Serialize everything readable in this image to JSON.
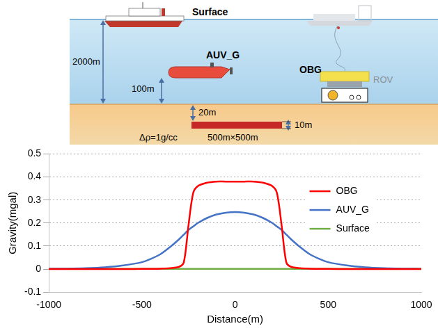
{
  "diagram": {
    "surface": "Surface",
    "vehicle": "AUV_G",
    "instrument": "OBG",
    "rov": "ROV",
    "depth": "2000m",
    "auv_height": "100m",
    "burial": "20m",
    "thickness": "10m",
    "density": "Δρ=1g/cc",
    "size": "500m×500m"
  },
  "chart_data": {
    "type": "line",
    "x_label": "Distance(m)",
    "y_label": "Gravity(mgal)",
    "x": [
      -1000,
      -900,
      -800,
      -700,
      -600,
      -500,
      -450,
      -400,
      -350,
      -300,
      -275,
      -250,
      -225,
      -200,
      -150,
      -100,
      -50,
      0,
      50,
      100,
      150,
      200,
      225,
      250,
      275,
      300,
      350,
      400,
      450,
      500,
      600,
      700,
      800,
      900,
      1000
    ],
    "series": [
      {
        "name": "OBG",
        "color": "#ff0000",
        "values": [
          0,
          0,
          0,
          0,
          0,
          0.001,
          0.001,
          0.002,
          0.004,
          0.01,
          0.03,
          0.19,
          0.33,
          0.36,
          0.375,
          0.38,
          0.38,
          0.38,
          0.38,
          0.38,
          0.375,
          0.36,
          0.33,
          0.19,
          0.03,
          0.01,
          0.004,
          0.002,
          0.001,
          0.001,
          0,
          0,
          0,
          0,
          0
        ]
      },
      {
        "name": "AUV_G",
        "color": "#4472c4",
        "values": [
          0.001,
          0.002,
          0.004,
          0.008,
          0.016,
          0.03,
          0.045,
          0.065,
          0.095,
          0.13,
          0.15,
          0.17,
          0.185,
          0.2,
          0.222,
          0.237,
          0.245,
          0.248,
          0.245,
          0.237,
          0.222,
          0.2,
          0.185,
          0.17,
          0.15,
          0.13,
          0.095,
          0.065,
          0.045,
          0.03,
          0.016,
          0.008,
          0.004,
          0.002,
          0.001
        ]
      },
      {
        "name": "Surface",
        "color": "#70ad47",
        "values": [
          0.001,
          0.001,
          0.001,
          0.001,
          0.001,
          0.001,
          0.001,
          0.001,
          0.001,
          0.001,
          0.001,
          0.001,
          0.001,
          0.001,
          0.001,
          0.001,
          0.001,
          0.001,
          0.001,
          0.001,
          0.001,
          0.001,
          0.001,
          0.001,
          0.001,
          0.001,
          0.001,
          0.001,
          0.001,
          0.001,
          0.001,
          0.001,
          0.001,
          0.001,
          0.001
        ]
      }
    ],
    "xlim": [
      -1000,
      1000
    ],
    "xticks": [
      -1000,
      -500,
      0,
      500,
      1000
    ],
    "ylim": [
      -0.1,
      0.5
    ],
    "yticks": [
      -0.1,
      0,
      0.1,
      0.2,
      0.3,
      0.4,
      0.5
    ],
    "grid": true,
    "legend": "right"
  }
}
